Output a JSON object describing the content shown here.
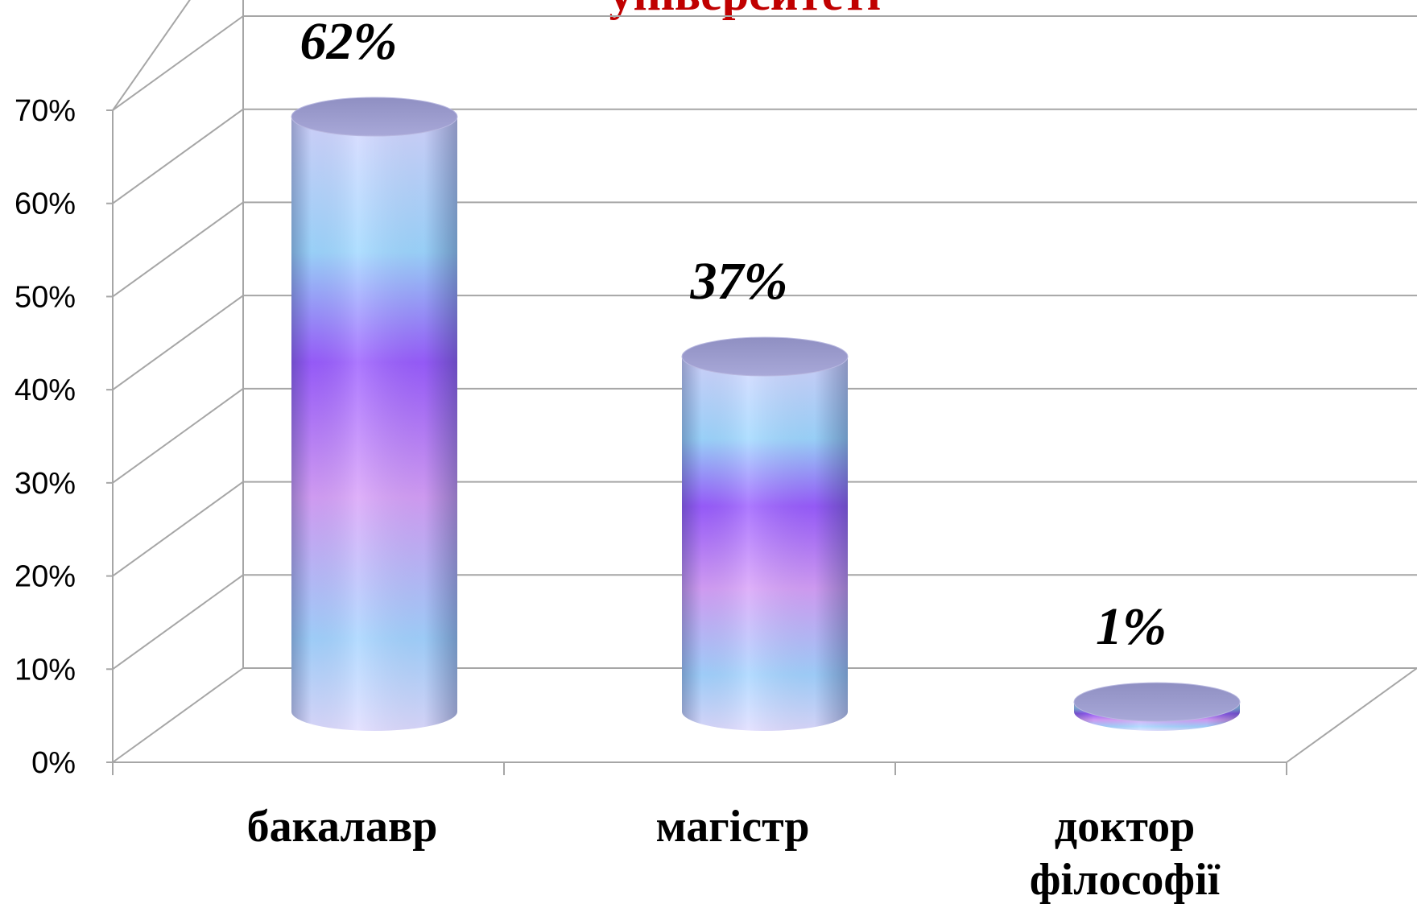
{
  "chart_data": {
    "type": "bar",
    "title": "університеті",
    "categories": [
      "бакалавр",
      "магістр",
      "доктор філософії"
    ],
    "category_lines": [
      [
        "бакалавр"
      ],
      [
        "магістр"
      ],
      [
        "доктор",
        "філософії"
      ]
    ],
    "values": [
      62,
      37,
      1
    ],
    "data_labels": [
      "62%",
      "37%",
      "1%"
    ],
    "ylim": [
      0,
      70
    ],
    "yticks": [
      0,
      10,
      20,
      30,
      40,
      50,
      60,
      70
    ],
    "ytick_labels": [
      "0%",
      "10%",
      "20%",
      "30%",
      "40%",
      "50%",
      "60%",
      "70%"
    ],
    "grid": true,
    "style": "3d-cylinder",
    "colors": {
      "title": "#c00000",
      "grid": "#a6a6a6",
      "bar_top": "#9d9dcc",
      "bar_gradient": [
        "#d6d6ff",
        "#9fd8ff",
        "#9b5cff",
        "#d8a0f8",
        "#a4d4ff",
        "#e0dcff"
      ]
    }
  }
}
